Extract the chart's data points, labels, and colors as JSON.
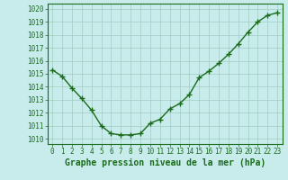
{
  "x": [
    0,
    1,
    2,
    3,
    4,
    5,
    6,
    7,
    8,
    9,
    10,
    11,
    12,
    13,
    14,
    15,
    16,
    17,
    18,
    19,
    20,
    21,
    22,
    23
  ],
  "y": [
    1015.3,
    1014.8,
    1013.9,
    1013.1,
    1012.2,
    1011.0,
    1010.4,
    1010.3,
    1010.3,
    1010.4,
    1011.2,
    1011.5,
    1012.3,
    1012.7,
    1013.4,
    1014.7,
    1015.2,
    1015.8,
    1016.5,
    1017.3,
    1018.2,
    1019.0,
    1019.5,
    1019.7
  ],
  "line_color": "#1a6b1a",
  "marker": "+",
  "marker_size": 4,
  "line_width": 1.0,
  "bg_color": "#c8ecec",
  "grid_color": "#a0ccc0",
  "xlabel": "Graphe pression niveau de la mer (hPa)",
  "xlabel_fontsize": 7,
  "xlabel_color": "#1a6b1a",
  "ytick_labels": [
    "1020",
    "1019",
    "1018",
    "1017",
    "1016",
    "1015",
    "1014",
    "1013",
    "1012",
    "1011",
    "1010"
  ],
  "yticks": [
    1020,
    1019,
    1018,
    1017,
    1016,
    1015,
    1014,
    1013,
    1012,
    1011,
    1010
  ],
  "ylim": [
    1009.6,
    1020.4
  ],
  "xlim": [
    -0.5,
    23.5
  ],
  "tick_fontsize": 5.5,
  "tick_color": "#1a6b1a",
  "spine_color": "#1a6b1a"
}
